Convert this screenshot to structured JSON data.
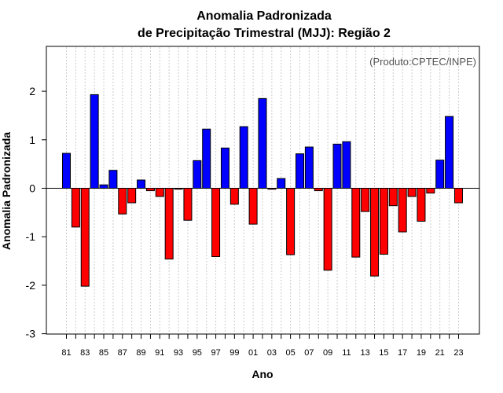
{
  "chart_data": {
    "type": "bar",
    "title_line1": "Anomalia Padronizada",
    "title_line2": "de Precipitação Trimestral (MJJ): Região 2",
    "credit": "(Produto:CPTEC/INPE)",
    "xlabel": "Ano",
    "ylabel": "Anomalia Padronizada",
    "ylim": [
      -3,
      3
    ],
    "yticks": [
      -3,
      -2,
      -1,
      0,
      1,
      2
    ],
    "positive_color": "#0000ff",
    "negative_color": "#ff0000",
    "x_tick_labels": [
      "81",
      "83",
      "85",
      "87",
      "89",
      "91",
      "93",
      "95",
      "97",
      "99",
      "01",
      "03",
      "05",
      "07",
      "09",
      "11",
      "13",
      "15",
      "17",
      "19",
      "21",
      "23"
    ],
    "categories": [
      "1981",
      "1982",
      "1983",
      "1984",
      "1985",
      "1986",
      "1987",
      "1988",
      "1989",
      "1990",
      "1991",
      "1992",
      "1993",
      "1994",
      "1995",
      "1996",
      "1997",
      "1998",
      "1999",
      "2000",
      "2001",
      "2002",
      "2003",
      "2004",
      "2005",
      "2006",
      "2007",
      "2008",
      "2009",
      "2010",
      "2011",
      "2012",
      "2013",
      "2014",
      "2015",
      "2016",
      "2017",
      "2018",
      "2019",
      "2020",
      "2021",
      "2022",
      "2023"
    ],
    "values": [
      0.72,
      -0.8,
      -2.02,
      1.93,
      0.07,
      0.37,
      -0.53,
      -0.3,
      0.17,
      -0.05,
      -0.17,
      -1.46,
      -0.02,
      -0.66,
      0.57,
      1.22,
      -1.41,
      0.83,
      -0.33,
      1.27,
      -0.74,
      1.85,
      -0.02,
      0.2,
      -1.37,
      0.71,
      0.85,
      -0.05,
      -1.69,
      0.91,
      0.96,
      -1.42,
      -0.48,
      -1.81,
      -1.36,
      -0.36,
      -0.9,
      -0.17,
      -0.68,
      -0.1,
      0.58,
      1.48,
      -0.3
    ]
  }
}
